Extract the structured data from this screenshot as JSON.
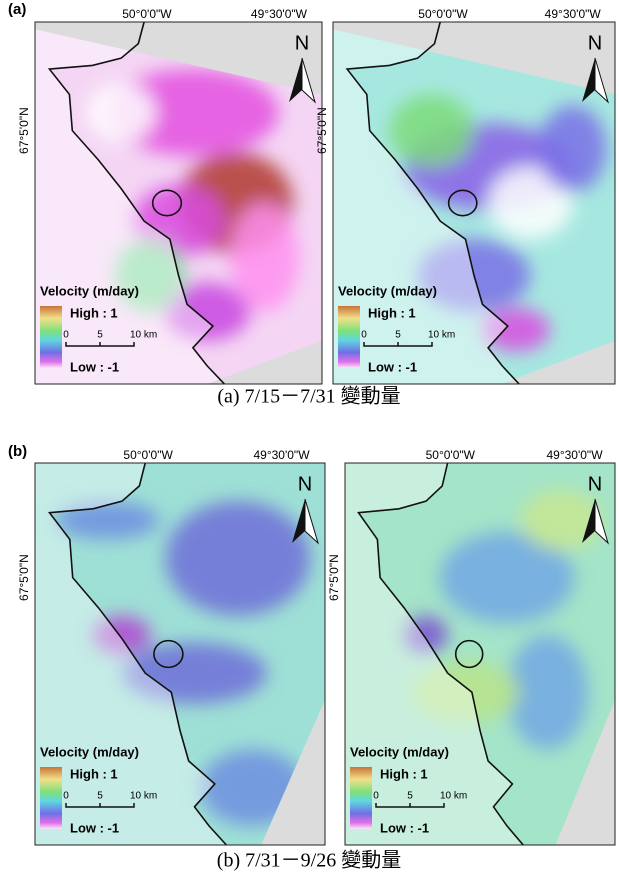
{
  "panels": [
    {
      "label": "(a)",
      "caption": "(a) 7/15－7/31 變動量",
      "maps": [
        {
          "lon_labels": [
            "50°0'0\"W",
            "49°30'0\"W"
          ],
          "lat_label": "67°5'0\"N",
          "north": "N",
          "legend": {
            "title": "Velocity (m/day)",
            "high": "High : 1",
            "low": "Low : -1",
            "scale": [
              "0",
              "5",
              "10 km"
            ]
          }
        },
        {
          "lon_labels": [
            "50°0'0\"W",
            "49°30'0\"W"
          ],
          "lat_label": "67°5'0\"N",
          "north": "N",
          "legend": {
            "title": "Velocity (m/day)",
            "high": "High : 1",
            "low": "Low : -1",
            "scale": [
              "0",
              "5",
              "10 km"
            ]
          }
        }
      ]
    },
    {
      "label": "(b)",
      "caption": "(b) 7/31－9/26 變動量",
      "maps": [
        {
          "lon_labels": [
            "50°0'0\"W",
            "49°30'0\"W"
          ],
          "lat_label": "67°5'0\"N",
          "north": "N",
          "legend": {
            "title": "Velocity (m/day)",
            "high": "High : 1",
            "low": "Low : -1",
            "scale": [
              "0",
              "5",
              "10 km"
            ]
          }
        },
        {
          "lon_labels": [
            "50°0'0\"W",
            "49°30'0\"W"
          ],
          "lat_label": "67°5'0\"N",
          "north": "N",
          "legend": {
            "title": "Velocity (m/day)",
            "high": "High : 1",
            "low": "Low : -1",
            "scale": [
              "0",
              "5",
              "10 km"
            ]
          }
        }
      ]
    }
  ]
}
